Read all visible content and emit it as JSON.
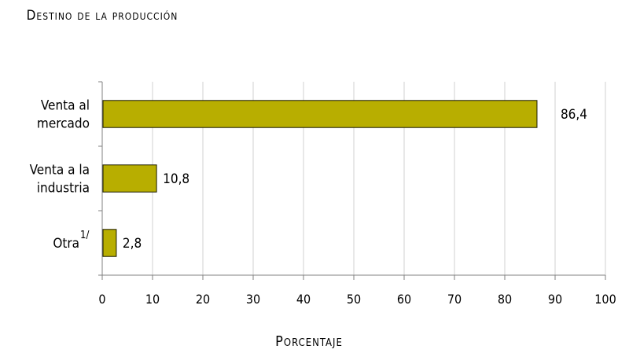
{
  "title": "Destino de la producción",
  "xlabel": "Porcentaje",
  "colors": {
    "bar": "#b8ae00",
    "bar_stroke": "#1a1a00",
    "grid": "#d0d0d0",
    "axis": "#808080"
  },
  "chart_data": {
    "type": "bar",
    "orientation": "horizontal",
    "categories": [
      {
        "lines": [
          "Venta al",
          "mercado"
        ],
        "sup": ""
      },
      {
        "lines": [
          "Venta a la",
          "industria"
        ],
        "sup": ""
      },
      {
        "lines": [
          "Otra"
        ],
        "sup": "1/"
      }
    ],
    "values": [
      86.4,
      10.8,
      2.8
    ],
    "value_labels": [
      "86,4",
      "10,8",
      "2,8"
    ],
    "xlim": [
      0,
      100
    ],
    "xticks": [
      0,
      10,
      20,
      30,
      40,
      50,
      60,
      70,
      80,
      90,
      100
    ],
    "grid": true,
    "legend": "none"
  }
}
